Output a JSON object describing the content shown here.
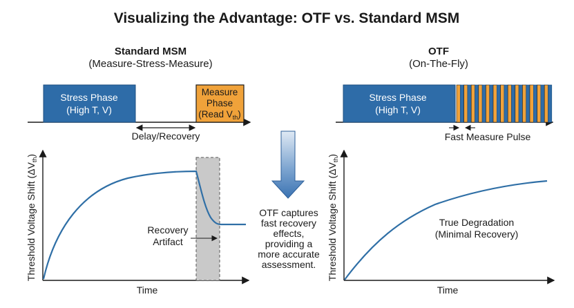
{
  "title": "Visualizing the Advantage: OTF vs. Standard MSM",
  "left": {
    "heading": "Standard MSM",
    "subheading": "(Measure-Stress-Measure)",
    "stress_phase": {
      "line1": "Stress Phase",
      "line2": "(High T, V)"
    },
    "measure_phase": {
      "line1": "Measure",
      "line2": "Phase",
      "line3": "(Read V",
      "line3_sub": "th",
      "line3_end": ")"
    },
    "delay_label": "Delay/Recovery",
    "plot": {
      "y_label": "Threshold Voltage Shift (ΔV",
      "y_label_sub": "th",
      "y_label_end": ")",
      "x_label": "Time",
      "annotation_line1": "Recovery",
      "annotation_line2": "Artifact"
    }
  },
  "right": {
    "heading": "OTF",
    "subheading": "(On-The-Fly)",
    "stress_phase": {
      "line1": "Stress Phase",
      "line2": "(High T, V)"
    },
    "pulse_label": "Fast Measure Pulse",
    "plot": {
      "y_label": "Threshold Voltage Shift (ΔV",
      "y_label_sub": "th",
      "y_label_end": ")",
      "x_label": "Time",
      "annotation_line1": "True Degradation",
      "annotation_line2": "(Minimal Recovery)"
    }
  },
  "middle_note": [
    "OTF captures",
    "fast recovery",
    "effects,",
    "providing a",
    "more accurate",
    "assessment."
  ],
  "colors": {
    "stress_blue": "#2e6ca8",
    "measure_orange": "#f0a23a",
    "curve_blue": "#2f6fa6",
    "arrow_blue": "#3b73b2",
    "artifact_gray": "#c9c9c9"
  }
}
